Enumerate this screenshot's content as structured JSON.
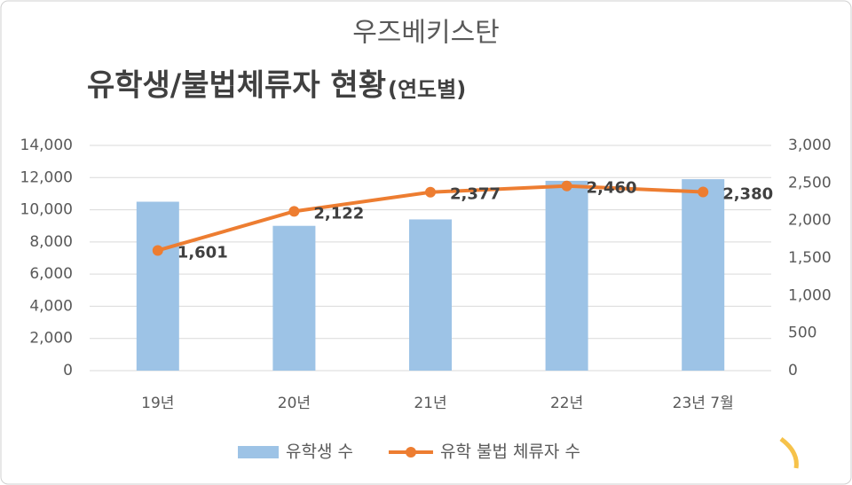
{
  "chart_data": {
    "type": "combo",
    "title": "우즈베키스탄",
    "subtitle": "유학생/불법체류자 현황",
    "subtitle_note": "(연도별)",
    "categories": [
      "19년",
      "20년",
      "21년",
      "22년",
      "23년 7월"
    ],
    "series": [
      {
        "name": "유학생 수",
        "type": "bar",
        "color": "#9dc3e6",
        "values": [
          10500,
          9000,
          9400,
          11800,
          11900
        ]
      },
      {
        "name": "유학 불법 체류자 수",
        "type": "line",
        "axis": "y2",
        "color": "#ed7d31",
        "values": [
          1601,
          2122,
          2377,
          2460,
          2380
        ],
        "value_labels": [
          "1,601",
          "2,122",
          "2,377",
          "2,460",
          "2,380"
        ]
      }
    ],
    "ylim": [
      0,
      14000
    ],
    "yticks": [
      0,
      {
        "value": 2000,
        "label": "2,000"
      },
      {
        "value": 4000,
        "label": "4,000"
      },
      {
        "value": 6000,
        "label": "6,000"
      },
      {
        "value": 8000,
        "label": "8,000"
      },
      {
        "value": 10000,
        "label": "10,000"
      },
      {
        "value": 12000,
        "label": "12,000"
      },
      {
        "value": 14000,
        "label": "14,000"
      }
    ],
    "y2lim": [
      0,
      3000
    ],
    "y2ticks": [
      0,
      500,
      {
        "value": 1000,
        "label": "1,000"
      },
      {
        "value": 1500,
        "label": "1,500"
      },
      {
        "value": 2000,
        "label": "2,000"
      },
      {
        "value": 2500,
        "label": "2,500"
      },
      {
        "value": 3000,
        "label": "3,000"
      }
    ],
    "grid": true,
    "legend": "bottom"
  }
}
